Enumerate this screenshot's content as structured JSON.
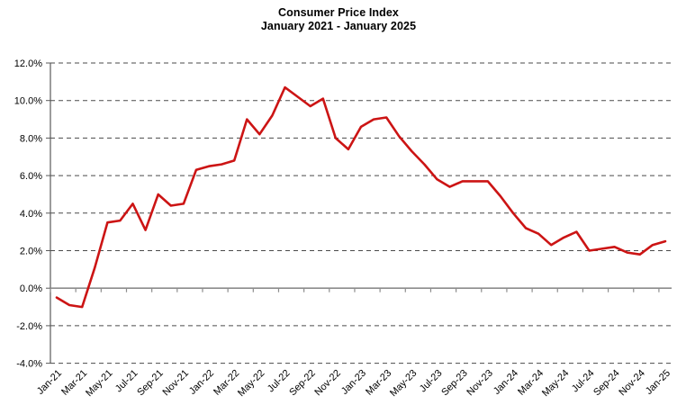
{
  "chart_data": {
    "type": "line",
    "title": "Consumer Price Index",
    "subtitle": "January 2021 - January 2025",
    "xlabel": "",
    "ylabel": "",
    "x": [
      "Jan-21",
      "Feb-21",
      "Mar-21",
      "Apr-21",
      "May-21",
      "Jun-21",
      "Jul-21",
      "Aug-21",
      "Sep-21",
      "Oct-21",
      "Nov-21",
      "Dec-21",
      "Jan-22",
      "Feb-22",
      "Mar-22",
      "Apr-22",
      "May-22",
      "Jun-22",
      "Jul-22",
      "Aug-22",
      "Sep-22",
      "Oct-22",
      "Nov-22",
      "Dec-22",
      "Jan-23",
      "Feb-23",
      "Mar-23",
      "Apr-23",
      "May-23",
      "Jun-23",
      "Jul-23",
      "Aug-23",
      "Sep-23",
      "Oct-23",
      "Nov-23",
      "Dec-23",
      "Jan-24",
      "Feb-24",
      "Mar-24",
      "Apr-24",
      "May-24",
      "Jun-24",
      "Jul-24",
      "Aug-24",
      "Sep-24",
      "Oct-24",
      "Nov-24",
      "Dec-24",
      "Jan-25"
    ],
    "values": [
      -0.5,
      -0.9,
      -1.0,
      1.1,
      3.5,
      3.6,
      4.5,
      3.1,
      5.0,
      4.4,
      4.5,
      6.3,
      6.5,
      6.6,
      6.8,
      9.0,
      8.2,
      9.2,
      10.7,
      10.2,
      9.7,
      10.1,
      8.0,
      7.4,
      8.6,
      9.0,
      9.1,
      8.1,
      7.3,
      6.6,
      5.8,
      5.4,
      5.7,
      5.7,
      5.7,
      4.9,
      4.0,
      3.2,
      2.9,
      2.3,
      2.7,
      3.0,
      2.0,
      2.1,
      2.2,
      1.9,
      1.8,
      2.3,
      2.5
    ],
    "x_tick_labels": [
      "Jan-21",
      "Mar-21",
      "May-21",
      "Jul-21",
      "Sep-21",
      "Nov-21",
      "Jan-22",
      "Mar-22",
      "May-22",
      "Jul-22",
      "Sep-22",
      "Nov-22",
      "Jan-23",
      "Mar-23",
      "May-23",
      "Jul-23",
      "Sep-23",
      "Nov-23",
      "Jan-24",
      "Mar-24",
      "May-24",
      "Jul-24",
      "Sep-24",
      "Nov-24",
      "Jan-25"
    ],
    "x_tick_interval": 2,
    "y_tick_labels": [
      "12.0%",
      "10.0%",
      "8.0%",
      "6.0%",
      "4.0%",
      "2.0%",
      "0.0%",
      "-2.0%",
      "-4.0%"
    ],
    "ylim": [
      -4,
      12
    ],
    "y_tick_step": 2,
    "grid": "horizontal-dashed",
    "zero_axis": "solid-with-ticks",
    "legend": "none",
    "line_color": "#cc1414",
    "grid_color": "#4a4a4a",
    "y_axis_color": "#595959",
    "zero_axis_color": "#8c8c8c",
    "text_color": "#000000",
    "background_color": "#ffffff"
  }
}
